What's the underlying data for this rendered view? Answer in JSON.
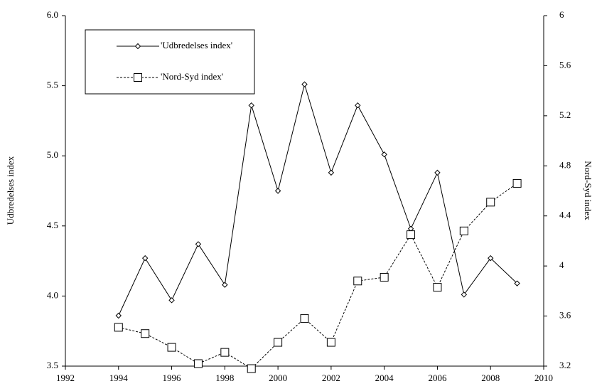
{
  "chart_data": {
    "type": "line",
    "x": [
      1994,
      1995,
      1996,
      1997,
      1998,
      1999,
      2000,
      2001,
      2002,
      2003,
      2004,
      2005,
      2006,
      2007,
      2008,
      2009
    ],
    "series": [
      {
        "name": "'Udbredelses index'",
        "color": "#000000",
        "line_style": "solid",
        "marker": "diamond",
        "values": [
          3.86,
          4.27,
          3.97,
          4.37,
          4.08,
          5.36,
          4.75,
          5.51,
          4.88,
          5.36,
          5.01,
          4.48,
          4.88,
          4.01,
          4.27,
          4.09
        ]
      },
      {
        "name": "'Nord-Syd index'",
        "color": "#000000",
        "line_style": "dashed",
        "marker": "square",
        "axis": "y2",
        "values": [
          3.51,
          3.46,
          3.35,
          3.22,
          3.31,
          3.18,
          3.39,
          3.58,
          3.39,
          3.88,
          3.91,
          4.25,
          3.83,
          4.28,
          4.51,
          4.66
        ]
      }
    ],
    "xlim": [
      1992,
      2010
    ],
    "xticks": [
      1992,
      1994,
      1996,
      1998,
      2000,
      2002,
      2004,
      2006,
      2008,
      2010
    ],
    "ylim": [
      3.5,
      6
    ],
    "yticks": [
      3.5,
      {
        "value": 4,
        "label": "4.0"
      },
      4.5,
      {
        "value": 5,
        "label": "5.0"
      },
      5.5,
      {
        "value": 6,
        "label": "6.0"
      }
    ],
    "y2lim": [
      3.2,
      6
    ],
    "y2ticks": [
      3.2,
      3.6,
      4,
      4.4,
      4.8,
      5.2,
      5.6,
      6
    ],
    "ylabel": "Udbredelses index",
    "y2label": "Nord-Syd index",
    "legend": "upper left",
    "grid": false
  }
}
